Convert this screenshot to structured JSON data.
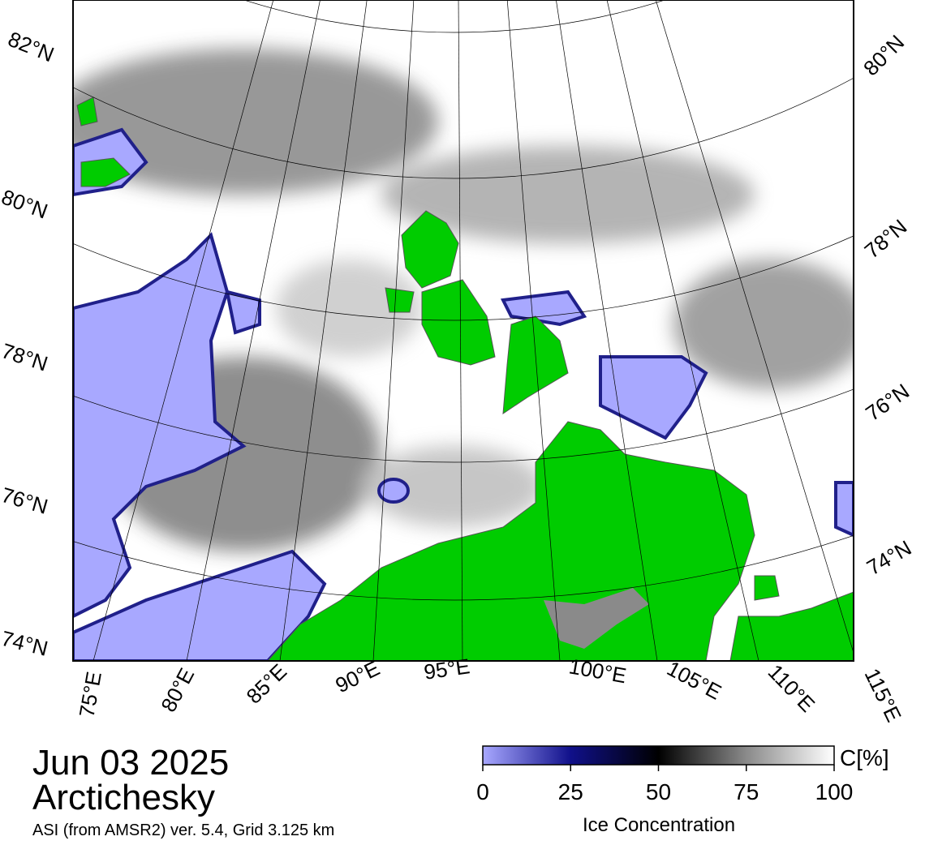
{
  "map": {
    "date": "Jun 03 2025",
    "region": "Arctichesky",
    "source": "ASI (from AMSR2) ver. 5.4,  Grid 3.125 km",
    "lat_labels_left": [
      "82°N",
      "80°N",
      "78°N",
      "76°N",
      "74°N"
    ],
    "lat_labels_right": [
      "80°N",
      "78°N",
      "76°N",
      "74°N"
    ],
    "lon_labels": [
      "75°E",
      "80°E",
      "85°E",
      "90°E",
      "95°E",
      "100°E",
      "105°E",
      "110°E",
      "115°E"
    ],
    "colorbar": {
      "label": "Ice Concentration",
      "unit": "C[%]",
      "range": [
        0,
        100
      ],
      "ticks": [
        0,
        25,
        50,
        75,
        100
      ]
    }
  }
}
